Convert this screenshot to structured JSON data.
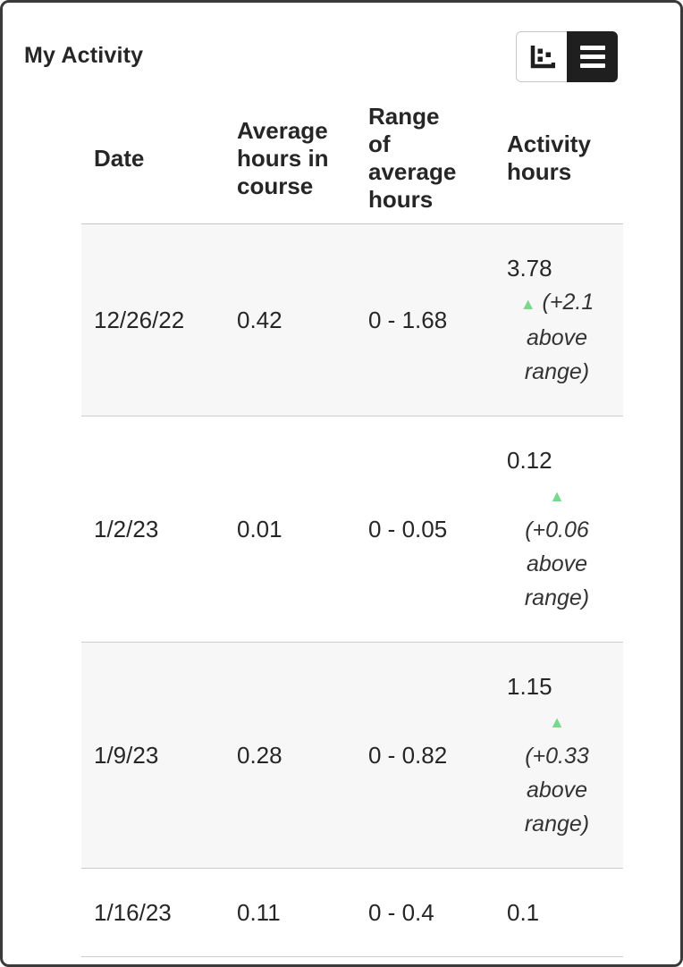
{
  "header": {
    "title": "My Activity",
    "view_toggle": {
      "chart_button": {
        "icon": "scatter-chart-icon",
        "selected": false
      },
      "table_button": {
        "icon": "list-icon",
        "selected": true
      }
    }
  },
  "icons": {
    "up_triangle": "▲"
  },
  "colors": {
    "trend_green": "#78d88c",
    "selected_toggle_bg": "#1f1f1f",
    "shaded_row_bg": "#f7f7f7",
    "frame_border": "#3a3a3a",
    "text": "#262626"
  },
  "table": {
    "columns": [
      {
        "key": "date",
        "label": "Date"
      },
      {
        "key": "avg",
        "label": "Average\nhours in\ncourse"
      },
      {
        "key": "range",
        "label": "Range\nof\naverage\nhours"
      },
      {
        "key": "activity",
        "label": "Activity\nhours"
      }
    ],
    "rows": [
      {
        "date": "12/26/22",
        "avg": "0.42",
        "range": "0 - 1.68",
        "activity": "3.78",
        "trend": "up",
        "delta": "(+2.1 above range)"
      },
      {
        "date": "1/2/23",
        "avg": "0.01",
        "range": "0 - 0.05",
        "activity": "0.12",
        "trend": "up",
        "delta": "(+0.06 above range)"
      },
      {
        "date": "1/9/23",
        "avg": "0.28",
        "range": "0 - 0.82",
        "activity": "1.15",
        "trend": "up",
        "delta": "(+0.33 above range)"
      },
      {
        "date": "1/16/23",
        "avg": "0.11",
        "range": "0 - 0.4",
        "activity": "0.1",
        "trend": null,
        "delta": null
      }
    ]
  }
}
